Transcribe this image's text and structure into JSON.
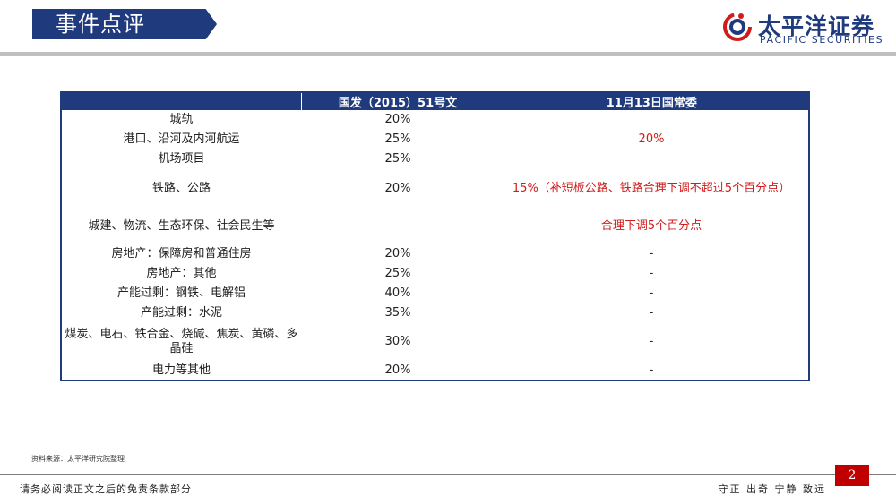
{
  "header": {
    "title": "事件点评",
    "logo_cn": "太平洋证券",
    "logo_en": "PACIFIC SECURITIES"
  },
  "colors": {
    "brand_blue": "#1f3a7d",
    "accent_red": "#d01c1c",
    "page_box": "#c00000"
  },
  "table": {
    "headers": [
      "",
      "国发（2015）51号文",
      "11月13日国常委"
    ],
    "rows": [
      {
        "sector": "城轨",
        "doc51": "20%"
      },
      {
        "sector": "港口、沿河及内河航运",
        "doc51": "25%"
      },
      {
        "sector": "机场项目",
        "doc51": "25%"
      },
      {
        "sector": "铁路、公路",
        "doc51": "20%",
        "state_council": "15%（补短板公路、铁路合理下调不超过5个百分点）"
      },
      {
        "sector": "城建、物流、生态环保、社会民生等",
        "doc51": "",
        "state_council": "合理下调5个百分点"
      },
      {
        "sector": "房地产：保障房和普通住房",
        "doc51": "20%",
        "state_council": "-"
      },
      {
        "sector": "房地产：其他",
        "doc51": "25%",
        "state_council": "-"
      },
      {
        "sector": "产能过剩：钢铁、电解铝",
        "doc51": "40%",
        "state_council": "-"
      },
      {
        "sector": "产能过剩：水泥",
        "doc51": "35%",
        "state_council": "-"
      },
      {
        "sector": "煤炭、电石、铁合金、烧碱、焦炭、黄磷、多晶硅",
        "doc51": "30%",
        "state_council": "-"
      },
      {
        "sector": "电力等其他",
        "doc51": "20%",
        "state_council": "-"
      }
    ],
    "merged_value": "20%"
  },
  "source_note": "资料来源：太平洋研究院整理",
  "footer": {
    "disclaimer": "请务必阅读正文之后的免责条款部分",
    "motto": "守正 出奇 宁静 致远",
    "page_number": "2"
  }
}
